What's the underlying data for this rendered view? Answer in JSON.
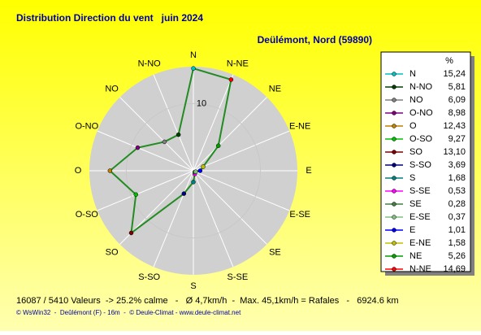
{
  "chart_data": {
    "type": "radar",
    "title": "Distribution Direction du vent   juin 2024",
    "subtitle": "Deülémont, Nord (59890)",
    "categories": [
      "N",
      "N-NO",
      "NO",
      "O-NO",
      "O",
      "O-SO",
      "SO",
      "S-SO",
      "S",
      "S-SE",
      "SE",
      "E-SE",
      "E",
      "E-NE",
      "NE",
      "N-NE"
    ],
    "values": [
      15.24,
      5.81,
      6.09,
      8.98,
      12.43,
      9.27,
      13.1,
      3.69,
      1.68,
      0.53,
      0.28,
      0.37,
      1.01,
      1.58,
      5.26,
      14.69
    ],
    "value_labels": [
      "15,24",
      "5,81",
      "6,09",
      "8,98",
      "12,43",
      "9,27",
      "13,10",
      "3,69",
      "1,68",
      "0,53",
      "0,28",
      "0,37",
      "1,01",
      "1,58",
      "5,26",
      "14,69"
    ],
    "colors": [
      "#00c0c0",
      "#004000",
      "#808080",
      "#800080",
      "#c08000",
      "#00c000",
      "#800000",
      "#000080",
      "#008080",
      "#ff00ff",
      "#408040",
      "#80c080",
      "#0000ff",
      "#c0c000",
      "#00a000",
      "#ff0000"
    ],
    "line_color": "#228b22",
    "rlim": [
      0,
      15.5
    ],
    "rticks": [
      10
    ],
    "legend_header": "%",
    "footer": "16087 / 5410 Valeurs  -> 25.2% calme   -   Ø 4,7km/h  -  Max. 45,1km/h = Rafales   -   6924.6 km",
    "credits": "© WsWin32  -  Deûlémont (F) - 16m  -  © Deule-Climat - www.deule-climat.net"
  }
}
